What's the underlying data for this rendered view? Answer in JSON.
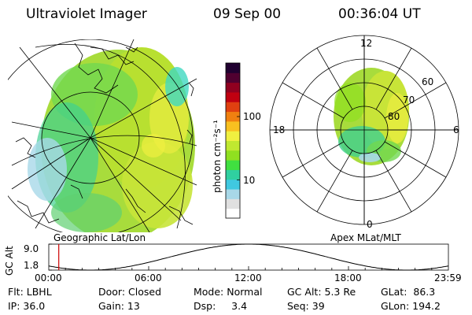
{
  "header": {
    "instrument": "Ultraviolet Imager",
    "date": "09 Sep 00",
    "time": "00:36:04 UT"
  },
  "colorbar": {
    "label": "photon cm⁻²s⁻¹",
    "ticks": [
      "100",
      "10"
    ],
    "tick_values": [
      100,
      10
    ],
    "range": [
      2.5,
      700
    ],
    "colors": [
      "#ffffff",
      "#e0e0e0",
      "#a8d8e8",
      "#40c8e0",
      "#30d0a0",
      "#40e040",
      "#90e020",
      "#c0e830",
      "#f0f040",
      "#f8c020",
      "#f08010",
      "#e04010",
      "#c00010",
      "#900020",
      "#500030",
      "#200030"
    ]
  },
  "geo_panel": {
    "label": "Geographic Lat/Lon"
  },
  "polar_panel": {
    "label": "Apex MLat/MLT",
    "mlt_labels": {
      "top": "12",
      "bottom": "0",
      "left": "18",
      "right": "6"
    },
    "lat_labels": [
      "60",
      "70",
      "80"
    ],
    "lat_label_values": [
      60,
      70,
      80
    ]
  },
  "altitude_plot": {
    "ylabel": "GC Alt",
    "yticks": [
      "9.0",
      "1.8"
    ],
    "ylim": [
      1.8,
      9.0
    ],
    "xticks": [
      "00:00",
      "06:00",
      "12:00",
      "18:00",
      "23:59"
    ],
    "x_hours": [
      0,
      6,
      12,
      18,
      23.98
    ],
    "marker_hour": 0.6,
    "marker_color": "#cc0000",
    "orbit_period_hours": 19.0,
    "perigee_hour": 2.5
  },
  "info": {
    "filter": "Flt: LBHL",
    "door": "Door: Closed",
    "mode": "Mode: Normal",
    "gc_alt": "GC Alt: 5.3 Re",
    "glat": "GLat:  86.3",
    "ip": "IP: 36.0",
    "gain": "Gain: 13",
    "dsp": "Dsp:     3.4",
    "seq": "Seq: 39",
    "glon": "GLon: 194.2"
  }
}
